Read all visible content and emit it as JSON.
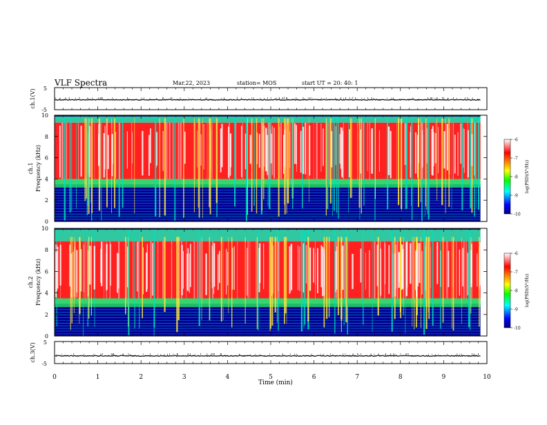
{
  "header": {
    "title": "VLF Spectra",
    "date": "Mar.22, 2023",
    "station": "station= MOS",
    "start": "start UT =  20: 40: 1"
  },
  "chart_data": [
    {
      "type": "line",
      "name": "ch1-voltage",
      "ylabel": "ch.1(V)",
      "ylim": [
        -5,
        5
      ],
      "ytick_labels": [
        "5",
        "-5"
      ],
      "level": -0.5,
      "line_color": "#000000"
    },
    {
      "type": "heatmap",
      "name": "ch1-spectrogram",
      "ylabel": "ch.1\nFrequency (kHz)",
      "xlim": [
        0,
        10
      ],
      "ylim": [
        0,
        10
      ],
      "yticks": [
        0,
        2,
        4,
        6,
        8,
        10
      ],
      "band_kHz": [
        4,
        9.3
      ],
      "colorbar": {
        "label": "log(PSD)(V²/Hz)",
        "range": [
          -10,
          -6
        ],
        "ticks": [
          "-6",
          "-7",
          "-8",
          "-9",
          "-10"
        ],
        "colors": [
          "#000080",
          "#0000ff",
          "#00ffff",
          "#00ff00",
          "#ffff00",
          "#ff8000",
          "#ff0000",
          "#ffffff"
        ]
      }
    },
    {
      "type": "heatmap",
      "name": "ch2-spectrogram",
      "ylabel": "ch.2\nFrequency (kHz)",
      "xlim": [
        0,
        10
      ],
      "ylim": [
        0,
        10
      ],
      "yticks": [
        0,
        2,
        4,
        6,
        8,
        10
      ],
      "band_kHz": [
        3.5,
        8.8
      ],
      "colorbar": {
        "label": "log(PSD)(V²/Hz)",
        "range": [
          -10,
          -6
        ],
        "ticks": [
          "-6",
          "-7",
          "-8",
          "-9",
          "-10"
        ],
        "colors": [
          "#000080",
          "#0000ff",
          "#00ffff",
          "#00ff00",
          "#ffff00",
          "#ff8000",
          "#ff0000",
          "#ffffff"
        ]
      }
    },
    {
      "type": "line",
      "name": "ch3-voltage",
      "ylabel": "ch.3(V)",
      "ylim": [
        -5,
        5
      ],
      "ytick_labels": [
        "5",
        "-5"
      ],
      "level": -1.5,
      "line_color": "#000000"
    }
  ],
  "xaxis": {
    "label": "Time (min)",
    "xlim": [
      0,
      10
    ],
    "ticks": [
      "0",
      "1",
      "2",
      "3",
      "4",
      "5",
      "6",
      "7",
      "8",
      "9",
      "10"
    ]
  }
}
